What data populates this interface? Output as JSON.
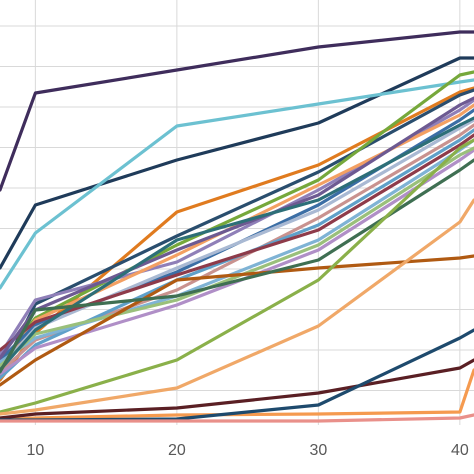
{
  "chart_data": {
    "type": "line",
    "x_ticks": [
      "10",
      "20",
      "30",
      "40"
    ],
    "xlim": [
      7.5,
      41
    ],
    "ylim": [
      0,
      420
    ],
    "grid": true,
    "legend": "none",
    "series": [
      {
        "color": "#3f2d5c",
        "values": [
          [
            7.5,
            190
          ],
          [
            10,
            93
          ],
          [
            20,
            70
          ],
          [
            30,
            47
          ],
          [
            40,
            32
          ],
          [
            41,
            32
          ]
        ]
      },
      {
        "color": "#1f3b5a",
        "values": [
          [
            7.5,
            268
          ],
          [
            10,
            205
          ],
          [
            20,
            160
          ],
          [
            30,
            123
          ],
          [
            40,
            58
          ],
          [
            41,
            58
          ]
        ]
      },
      {
        "color": "#6cc1d1",
        "values": [
          [
            7.5,
            288
          ],
          [
            10,
            233
          ],
          [
            20,
            126
          ],
          [
            30,
            104
          ],
          [
            40,
            82
          ],
          [
            41,
            80
          ]
        ]
      },
      {
        "color": "#e07b1f",
        "values": [
          [
            7.5,
            380
          ],
          [
            10,
            333
          ],
          [
            20,
            212
          ],
          [
            30,
            165
          ],
          [
            40,
            92
          ],
          [
            41,
            88
          ]
        ]
      },
      {
        "color": "#2a4e6e",
        "values": [
          [
            7.5,
            375
          ],
          [
            10,
            304
          ],
          [
            20,
            236
          ],
          [
            30,
            172
          ],
          [
            40,
            95
          ],
          [
            41,
            90
          ]
        ]
      },
      {
        "color": "#76a83b",
        "values": [
          [
            7.5,
            365
          ],
          [
            10,
            318
          ],
          [
            20,
            245
          ],
          [
            30,
            180
          ],
          [
            40,
            75
          ],
          [
            41,
            72
          ]
        ]
      },
      {
        "color": "#8f7fb8",
        "values": [
          [
            7.5,
            355
          ],
          [
            10,
            300
          ],
          [
            20,
            262
          ],
          [
            30,
            190
          ],
          [
            40,
            110
          ],
          [
            41,
            100
          ]
        ]
      },
      {
        "color": "#f3a063",
        "values": [
          [
            7.5,
            370
          ],
          [
            10,
            320
          ],
          [
            20,
            255
          ],
          [
            30,
            185
          ],
          [
            40,
            115
          ],
          [
            41,
            105
          ]
        ]
      },
      {
        "color": "#3b6ea5",
        "values": [
          [
            7.5,
            360
          ],
          [
            10,
            325
          ],
          [
            20,
            272
          ],
          [
            30,
            205
          ],
          [
            40,
            120
          ],
          [
            41,
            110
          ]
        ]
      },
      {
        "color": "#a9b9d3",
        "values": [
          [
            7.5,
            368
          ],
          [
            10,
            328
          ],
          [
            20,
            268
          ],
          [
            30,
            210
          ],
          [
            40,
            128
          ],
          [
            41,
            120
          ]
        ]
      },
      {
        "color": "#c9928f",
        "values": [
          [
            7.5,
            372
          ],
          [
            10,
            340
          ],
          [
            20,
            290
          ],
          [
            30,
            218
          ],
          [
            40,
            135
          ],
          [
            41,
            125
          ]
        ]
      },
      {
        "color": "#5fa0c9",
        "values": [
          [
            7.5,
            378
          ],
          [
            10,
            345
          ],
          [
            20,
            280
          ],
          [
            30,
            225
          ],
          [
            40,
            140
          ],
          [
            41,
            130
          ]
        ]
      },
      {
        "color": "#8e3b4a",
        "values": [
          [
            7.5,
            350
          ],
          [
            10,
            322
          ],
          [
            20,
            275
          ],
          [
            30,
            230
          ],
          [
            40,
            145
          ],
          [
            41,
            135
          ]
        ]
      },
      {
        "color": "#7fb3d5",
        "values": [
          [
            7.5,
            362
          ],
          [
            10,
            338
          ],
          [
            20,
            296
          ],
          [
            30,
            240
          ],
          [
            40,
            150
          ],
          [
            41,
            140
          ]
        ]
      },
      {
        "color": "#b08fc7",
        "values": [
          [
            7.5,
            374
          ],
          [
            10,
            348
          ],
          [
            20,
            305
          ],
          [
            30,
            250
          ],
          [
            40,
            160
          ],
          [
            41,
            150
          ]
        ]
      },
      {
        "color": "#9ac07b",
        "values": [
          [
            7.5,
            366
          ],
          [
            10,
            334
          ],
          [
            20,
            300
          ],
          [
            30,
            245
          ],
          [
            40,
            155
          ],
          [
            41,
            148
          ]
        ]
      },
      {
        "color": "#6d5a92",
        "values": [
          [
            7.5,
            358
          ],
          [
            10,
            310
          ],
          [
            20,
            250
          ],
          [
            30,
            195
          ],
          [
            40,
            105
          ],
          [
            41,
            98
          ]
        ]
      },
      {
        "color": "#2d6f78",
        "values": [
          [
            7.5,
            370
          ],
          [
            10,
            330
          ],
          [
            20,
            240
          ],
          [
            30,
            200
          ],
          [
            40,
            125
          ],
          [
            41,
            118
          ]
        ]
      },
      {
        "color": "#b05a12",
        "values": [
          [
            7.5,
            385
          ],
          [
            10,
            360
          ],
          [
            20,
            280
          ],
          [
            30,
            268
          ],
          [
            40,
            258
          ],
          [
            41,
            256
          ]
        ]
      },
      {
        "color": "#3f6f52",
        "values": [
          [
            7.5,
            372
          ],
          [
            10,
            310
          ],
          [
            20,
            296
          ],
          [
            30,
            260
          ],
          [
            40,
            170
          ],
          [
            41,
            160
          ]
        ]
      },
      {
        "color": "#8ab04a",
        "values": [
          [
            7.5,
            412
          ],
          [
            10,
            403
          ],
          [
            20,
            360
          ],
          [
            30,
            280
          ],
          [
            40,
            148
          ],
          [
            41,
            140
          ]
        ]
      },
      {
        "color": "#f0a868",
        "values": [
          [
            7.5,
            414
          ],
          [
            10,
            410
          ],
          [
            20,
            388
          ],
          [
            30,
            326
          ],
          [
            40,
            222
          ],
          [
            41,
            200
          ]
        ]
      },
      {
        "color": "#f59a4f",
        "values": [
          [
            7.5,
            420
          ],
          [
            10,
            418
          ],
          [
            20,
            415
          ],
          [
            30,
            414
          ],
          [
            40,
            412
          ],
          [
            41,
            370
          ]
        ]
      },
      {
        "color": "#5a1f24",
        "values": [
          [
            7.5,
            418
          ],
          [
            10,
            414
          ],
          [
            20,
            408
          ],
          [
            30,
            393
          ],
          [
            40,
            368
          ],
          [
            41,
            360
          ]
        ]
      },
      {
        "color": "#1e4a6d",
        "values": [
          [
            7.5,
            420
          ],
          [
            10,
            420
          ],
          [
            20,
            419
          ],
          [
            30,
            405
          ],
          [
            40,
            338
          ],
          [
            41,
            330
          ]
        ]
      },
      {
        "color": "#e9908a",
        "values": [
          [
            7.5,
            421
          ],
          [
            10,
            421
          ],
          [
            20,
            421
          ],
          [
            30,
            421
          ],
          [
            40,
            418
          ],
          [
            41,
            415
          ]
        ]
      }
    ]
  }
}
